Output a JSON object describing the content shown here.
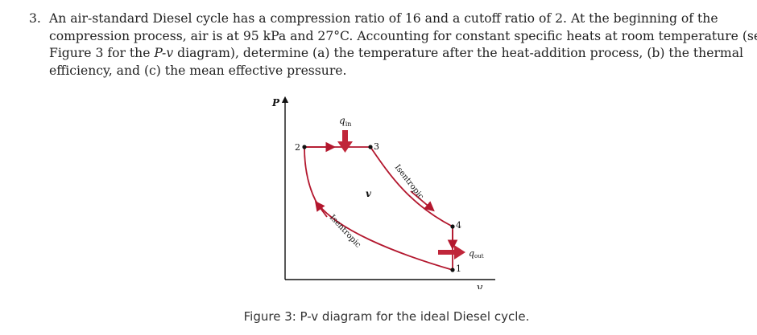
{
  "problem": {
    "number": "3.",
    "line1": "An air-standard Diesel cycle has a compression ratio of 16 and a cutoff ratio of 2.  At the beginning of the",
    "line2": "compression process, air is at 95 kPa and 27°C. Accounting for constant specific heats at room temperature (see",
    "line3_a": "Figure 3 for the ",
    "line3_var": "P-v",
    "line3_b": " diagram), determine (a) the temperature after the heat-addition process, (b) the thermal",
    "line4": "efficiency, and (c) the mean effective pressure."
  },
  "diagram": {
    "y_axis_label": "P",
    "x_axis_label": "v",
    "center_label": "v",
    "q_in_main": "q",
    "q_in_sub": "in",
    "q_out_main": "q",
    "q_out_sub": "out",
    "state_1": "1",
    "state_2": "2",
    "state_3": "3",
    "state_4": "4",
    "isentropic_upper": "Isentropic",
    "isentropic_lower": "Isentropic",
    "curve_color": "#b3172e",
    "arrow_color": "#c0263a"
  },
  "caption": {
    "text": "Figure 3: P-v diagram for the ideal Diesel cycle."
  }
}
